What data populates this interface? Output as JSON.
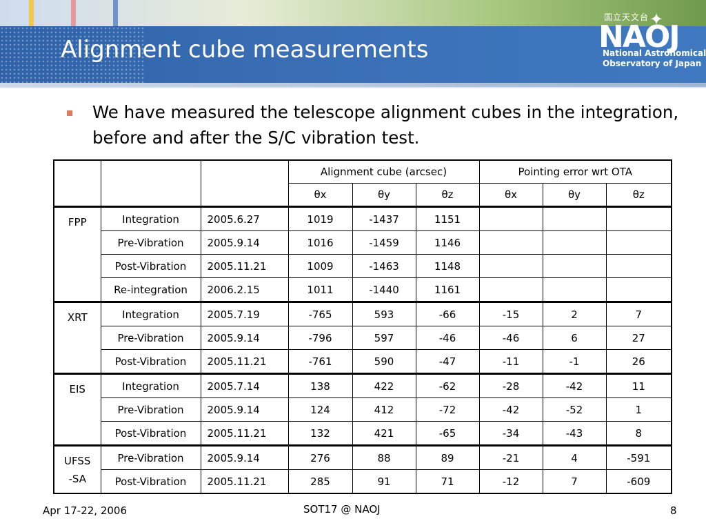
{
  "slide": {
    "title": "Alignment cube measurements",
    "bullet": "We have measured the telescope alignment cubes in the integration, before and after the S/C vibration test.",
    "logo": {
      "jp": "国立天文台",
      "mark": "NAOJ",
      "line1": "National Astronomical",
      "line2": "Observatory of Japan"
    }
  },
  "colors": {
    "stripe1": "#f3c84a",
    "stripe2": "#e69a9a",
    "stripe3": "#6f94cf"
  },
  "table": {
    "group_headers": [
      "Alignment cube (arcsec)",
      "Pointing error wrt OTA"
    ],
    "axis_headers": [
      "θx",
      "θy",
      "θz",
      "θx",
      "θy",
      "θz"
    ],
    "groups": [
      {
        "system": "FPP",
        "rows": [
          {
            "phase": "Integration",
            "date": "2005.6.27",
            "values": [
              "1019",
              "-1437",
              "1151",
              "",
              "",
              ""
            ]
          },
          {
            "phase": "Pre-Vibration",
            "date": "2005.9.14",
            "values": [
              "1016",
              "-1459",
              "1146",
              "",
              "",
              ""
            ]
          },
          {
            "phase": "Post-Vibration",
            "date": "2005.11.21",
            "values": [
              "1009",
              "-1463",
              "1148",
              "",
              "",
              ""
            ]
          },
          {
            "phase": "Re-integration",
            "date": "2006.2.15",
            "values": [
              "1011",
              "-1440",
              "1161",
              "",
              "",
              ""
            ]
          }
        ]
      },
      {
        "system": "XRT",
        "rows": [
          {
            "phase": "Integration",
            "date": "2005.7.19",
            "values": [
              "-765",
              "593",
              "-66",
              "-15",
              "2",
              "7"
            ]
          },
          {
            "phase": "Pre-Vibration",
            "date": "2005.9.14",
            "values": [
              "-796",
              "597",
              "-46",
              "-46",
              "6",
              "27"
            ]
          },
          {
            "phase": "Post-Vibration",
            "date": "2005.11.21",
            "values": [
              "-761",
              "590",
              "-47",
              "-11",
              "-1",
              "26"
            ]
          }
        ]
      },
      {
        "system": "EIS",
        "rows": [
          {
            "phase": "Integration",
            "date": "2005.7.14",
            "values": [
              "138",
              "422",
              "-62",
              "-28",
              "-42",
              "11"
            ]
          },
          {
            "phase": "Pre-Vibration",
            "date": "2005.9.14",
            "values": [
              "124",
              "412",
              "-72",
              "-42",
              "-52",
              "1"
            ]
          },
          {
            "phase": "Post-Vibration",
            "date": "2005.11.21",
            "values": [
              "132",
              "421",
              "-65",
              "-34",
              "-43",
              "8"
            ]
          }
        ]
      },
      {
        "system": "UFSS\n-SA",
        "rows": [
          {
            "phase": "Pre-Vibration",
            "date": "2005.9.14",
            "values": [
              "276",
              "88",
              "89",
              "-21",
              "4",
              "-591"
            ]
          },
          {
            "phase": "Post-Vibration",
            "date": "2005.11.21",
            "values": [
              "285",
              "91",
              "71",
              "-12",
              "7",
              "-609"
            ]
          }
        ]
      }
    ]
  },
  "footer": {
    "left": "Apr 17-22, 2006",
    "center": "SOT17 @ NAOJ",
    "right": "8"
  }
}
